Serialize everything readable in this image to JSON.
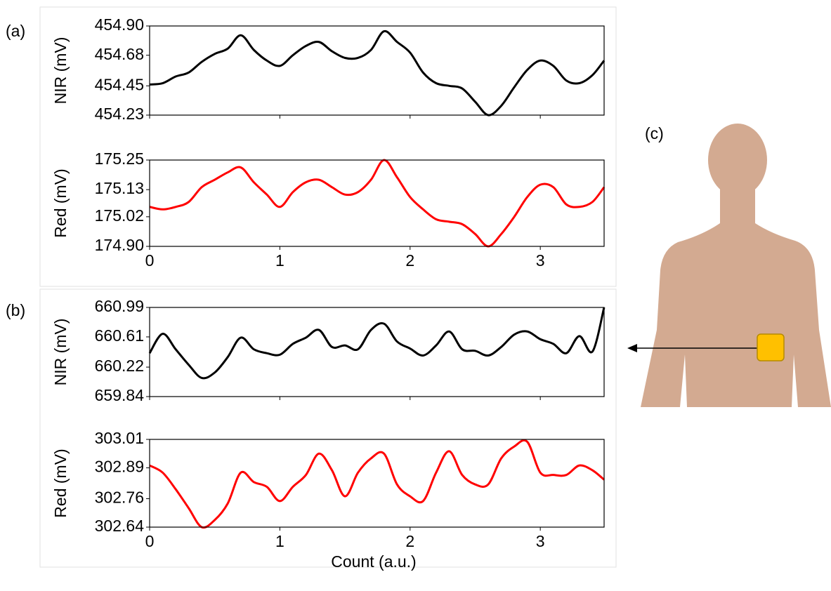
{
  "chart_data": [
    {
      "type": "line",
      "ylabel": "NIR (mV)",
      "color": "#000000",
      "xtick_labels": false,
      "x": [
        0,
        0.1,
        0.2,
        0.3,
        0.4,
        0.5,
        0.6,
        0.7,
        0.8,
        0.9,
        1.0,
        1.1,
        1.2,
        1.3,
        1.4,
        1.5,
        1.6,
        1.7,
        1.8,
        1.9,
        2.0,
        2.1,
        2.2,
        2.3,
        2.4,
        2.5,
        2.6,
        2.7,
        2.8,
        2.9,
        3.0,
        3.1,
        3.2,
        3.3,
        3.4,
        3.49
      ],
      "values": [
        454.46,
        454.47,
        454.52,
        454.55,
        454.63,
        454.69,
        454.73,
        454.83,
        454.72,
        454.64,
        454.6,
        454.68,
        454.75,
        454.78,
        454.71,
        454.66,
        454.66,
        454.72,
        454.86,
        454.78,
        454.7,
        454.55,
        454.47,
        454.45,
        454.43,
        454.33,
        454.23,
        454.3,
        454.44,
        454.57,
        454.64,
        454.6,
        454.49,
        454.47,
        454.53,
        454.64
      ],
      "xlim": [
        0,
        3.49
      ],
      "xticks": [
        0,
        1,
        2,
        3
      ],
      "ylim": [
        454.23,
        454.9
      ],
      "yticks": [
        454.23,
        454.45,
        454.68,
        {
          "value": 454.9,
          "label": "454.90"
        }
      ]
    },
    {
      "type": "line",
      "ylabel": "Red (mV)",
      "color": "#ff0000",
      "xtick_labels": true,
      "x": [
        0,
        0.1,
        0.2,
        0.3,
        0.4,
        0.5,
        0.6,
        0.7,
        0.8,
        0.9,
        1.0,
        1.1,
        1.2,
        1.3,
        1.4,
        1.5,
        1.6,
        1.7,
        1.8,
        1.9,
        2.0,
        2.1,
        2.2,
        2.3,
        2.4,
        2.5,
        2.6,
        2.7,
        2.8,
        2.9,
        3.0,
        3.1,
        3.2,
        3.3,
        3.4,
        3.49
      ],
      "values": [
        175.06,
        175.05,
        175.06,
        175.08,
        175.14,
        175.17,
        175.2,
        175.22,
        175.16,
        175.11,
        175.06,
        175.12,
        175.16,
        175.17,
        175.14,
        175.11,
        175.12,
        175.17,
        175.25,
        175.18,
        175.1,
        175.05,
        175.01,
        175.0,
        174.99,
        174.95,
        174.9,
        174.95,
        175.02,
        175.1,
        175.15,
        175.14,
        175.07,
        175.06,
        175.08,
        175.14
      ],
      "xlim": [
        0,
        3.49
      ],
      "xticks": [
        0,
        1,
        2,
        3
      ],
      "ylim": [
        174.9,
        175.25
      ],
      "yticks": [
        {
          "value": 174.9,
          "label": "174.90"
        },
        175.02,
        175.13,
        175.25
      ]
    },
    {
      "type": "line",
      "ylabel": "NIR (mV)",
      "color": "#000000",
      "xtick_labels": false,
      "x": [
        0,
        0.1,
        0.2,
        0.3,
        0.4,
        0.5,
        0.6,
        0.7,
        0.8,
        0.9,
        1.0,
        1.1,
        1.2,
        1.3,
        1.4,
        1.5,
        1.6,
        1.7,
        1.8,
        1.9,
        2.0,
        2.1,
        2.2,
        2.3,
        2.4,
        2.5,
        2.6,
        2.7,
        2.8,
        2.9,
        3.0,
        3.1,
        3.2,
        3.3,
        3.4,
        3.49
      ],
      "values": [
        660.4,
        660.65,
        660.45,
        660.25,
        660.08,
        660.15,
        660.35,
        660.6,
        660.45,
        660.4,
        660.38,
        660.52,
        660.6,
        660.7,
        660.48,
        660.5,
        660.45,
        660.7,
        660.78,
        660.55,
        660.46,
        660.37,
        660.5,
        660.68,
        660.45,
        660.43,
        660.37,
        660.48,
        660.64,
        660.68,
        660.58,
        660.52,
        660.4,
        660.62,
        660.42,
        660.99
      ],
      "xlim": [
        0,
        3.49
      ],
      "xticks": [
        0,
        1,
        2,
        3
      ],
      "ylim": [
        659.84,
        660.99
      ],
      "yticks": [
        659.84,
        660.22,
        660.61,
        660.99
      ]
    },
    {
      "type": "line",
      "ylabel": "Red (mV)",
      "color": "#ff0000",
      "xtick_labels": true,
      "x": [
        0,
        0.1,
        0.2,
        0.3,
        0.4,
        0.5,
        0.6,
        0.7,
        0.8,
        0.9,
        1.0,
        1.1,
        1.2,
        1.3,
        1.4,
        1.5,
        1.6,
        1.7,
        1.8,
        1.9,
        2.0,
        2.1,
        2.2,
        2.3,
        2.4,
        2.5,
        2.6,
        2.7,
        2.8,
        2.9,
        3.0,
        3.1,
        3.2,
        3.3,
        3.4,
        3.49
      ],
      "values": [
        302.9,
        302.87,
        302.8,
        302.72,
        302.64,
        302.67,
        302.74,
        302.87,
        302.83,
        302.81,
        302.75,
        302.81,
        302.86,
        302.95,
        302.88,
        302.77,
        302.87,
        302.93,
        302.95,
        302.82,
        302.77,
        302.75,
        302.87,
        302.96,
        302.86,
        302.82,
        302.82,
        302.93,
        302.98,
        303.0,
        302.87,
        302.86,
        302.86,
        302.9,
        302.88,
        302.84
      ],
      "xlim": [
        0,
        3.49
      ],
      "xticks": [
        0,
        1,
        2,
        3
      ],
      "ylim": [
        302.64,
        303.01
      ],
      "yticks": [
        302.64,
        302.76,
        302.89,
        303.01
      ]
    }
  ],
  "xlabel": "Count (a.u.)",
  "panel_labels": [
    "(a)",
    "(b)",
    "(c)"
  ]
}
